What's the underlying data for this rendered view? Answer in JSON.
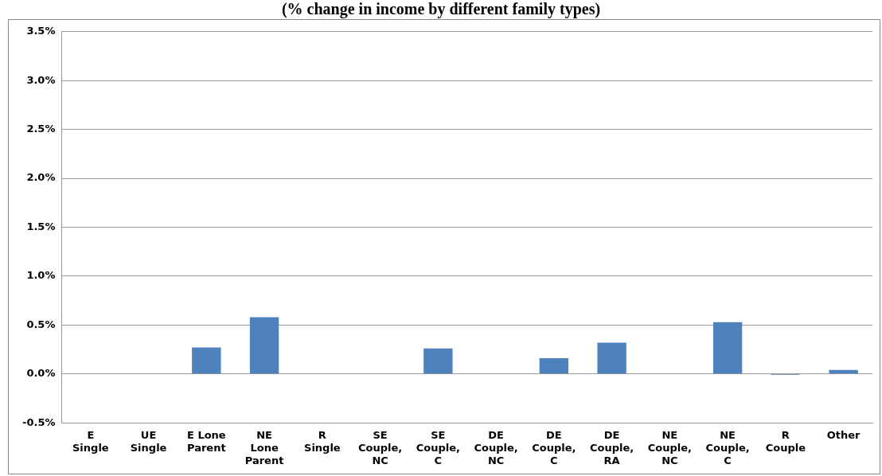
{
  "chart_data": {
    "type": "bar",
    "title": "(% change in income by different family types)",
    "categories": [
      "E Single",
      "UE Single",
      "E Lone Parent",
      "NE Lone Parent",
      "R Single",
      "SE Couple, NC",
      "SE Couple, C",
      "DE Couple, NC",
      "DE Couple, C",
      "DE Couple, RA",
      "NE Couple, NC",
      "NE Couple, C",
      "R Couple",
      "Other"
    ],
    "values": [
      0,
      0,
      0.27,
      0.58,
      0,
      0,
      0.26,
      0,
      0.16,
      0.32,
      0,
      0.53,
      -0.01,
      0.04
    ],
    "color": "#4f81bd",
    "ylim": [
      -0.5,
      3.5
    ],
    "yticks": [
      {
        "value": -0.5,
        "label": "-0.5%"
      },
      {
        "value": 0,
        "label": "0.0%"
      },
      {
        "value": 0.5,
        "label": "0.5%"
      },
      {
        "value": 1,
        "label": "1.0%"
      },
      {
        "value": 1.5,
        "label": "1.5%"
      },
      {
        "value": 2,
        "label": "2.0%"
      },
      {
        "value": 2.5,
        "label": "2.5%"
      },
      {
        "value": 3,
        "label": "3.0%"
      },
      {
        "value": 3.5,
        "label": "3.5%"
      }
    ],
    "grid": "y",
    "legend": false
  }
}
